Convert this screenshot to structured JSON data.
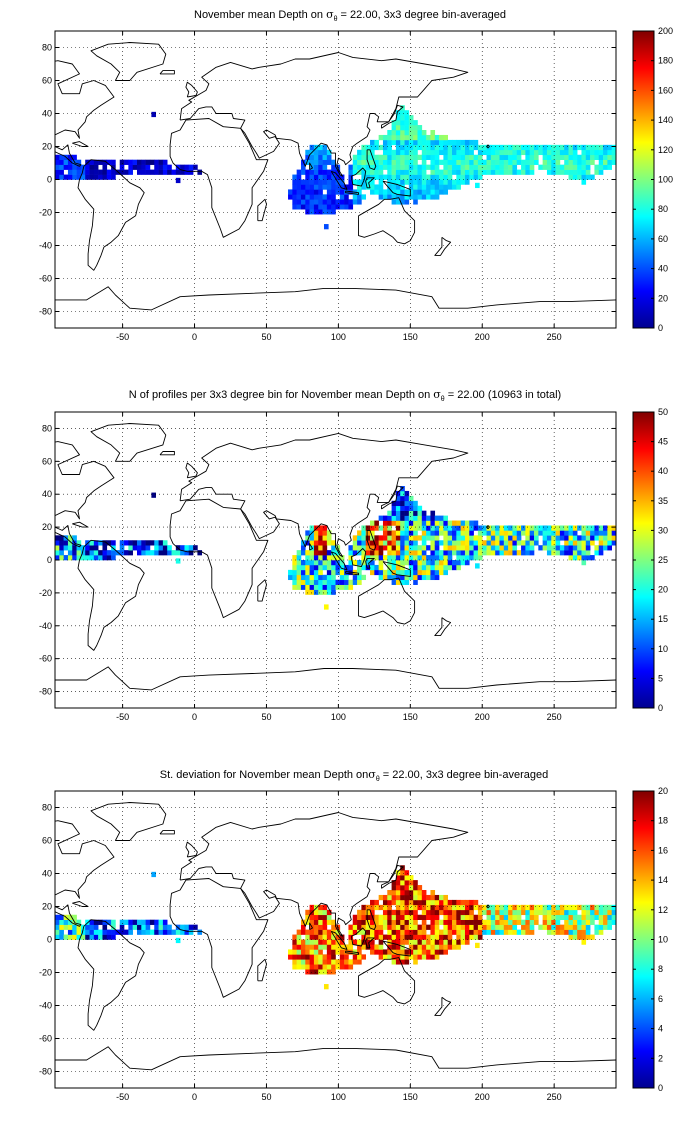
{
  "panels": [
    {
      "id": "mean-depth",
      "title": {
        "pre": "November mean Depth on ",
        "sym": "σ",
        "sub": "θ",
        "post": " = 22.00, 3x3 degree bin-averaged"
      },
      "colorbar": {
        "min": 0,
        "max": 200,
        "ticks": [
          "0",
          "20",
          "40",
          "60",
          "80",
          "100",
          "120",
          "140",
          "160",
          "180",
          "200"
        ]
      }
    },
    {
      "id": "profile-count",
      "title": {
        "pre": "N of profiles per 3x3 degree bin for November mean Depth on ",
        "sym": "σ",
        "sub": "θ",
        "post": " = 22.00 (10963 in total)"
      },
      "colorbar": {
        "min": 0,
        "max": 50,
        "ticks": [
          "0",
          "5",
          "10",
          "15",
          "20",
          "25",
          "30",
          "35",
          "40",
          "45",
          "50"
        ]
      }
    },
    {
      "id": "std-dev",
      "title": {
        "pre": "St. deviation for November mean Depth on",
        "sym": "σ",
        "sub": "θ",
        "post": " = 22.00, 3x3 degree bin-averaged"
      },
      "colorbar": {
        "min": 0,
        "max": 20,
        "ticks": [
          "0",
          "2",
          "4",
          "6",
          "8",
          "10",
          "12",
          "14",
          "16",
          "18",
          "20"
        ]
      }
    }
  ],
  "axes": {
    "x_ticks": [
      "-50",
      "0",
      "50",
      "100",
      "150",
      "200",
      "250"
    ],
    "x_values": [
      -50,
      0,
      50,
      100,
      150,
      200,
      250
    ],
    "xlim": [
      -97,
      293
    ],
    "y_ticks": [
      "80",
      "60",
      "40",
      "20",
      "0",
      "-20",
      "-40",
      "-60",
      "-80"
    ],
    "y_values": [
      80,
      60,
      40,
      20,
      0,
      -20,
      -40,
      -60,
      -80
    ],
    "ylim": [
      -90,
      90
    ],
    "grid": "dotted"
  },
  "colormap": "jet",
  "chart_data": [
    {
      "type": "heatmap",
      "title": "November mean Depth on σθ = 22.00, 3x3 degree bin-averaged",
      "variable": "mean depth",
      "bin_size_deg": 3,
      "zlim": [
        0,
        200
      ],
      "regions": [
        {
          "lon": [
            -97,
            -70
          ],
          "lat": [
            0,
            15
          ],
          "approx_value": 40
        },
        {
          "lon": [
            -70,
            5
          ],
          "lat": [
            0,
            12
          ],
          "approx_value": 20
        },
        {
          "lon": [
            60,
            120
          ],
          "lat": [
            -20,
            20
          ],
          "approx_value": 45
        },
        {
          "lon": [
            110,
            293
          ],
          "lat": [
            -15,
            40
          ],
          "approx_value": 70
        }
      ]
    },
    {
      "type": "heatmap",
      "title": "N of profiles per 3x3 degree bin for November mean Depth on σθ = 22.00 (10963 in total)",
      "variable": "profile count",
      "bin_size_deg": 3,
      "total": 10963,
      "zlim": [
        0,
        50
      ],
      "regions": [
        {
          "lon": [
            -97,
            -70
          ],
          "lat": [
            0,
            15
          ],
          "approx_value": 15
        },
        {
          "lon": [
            -70,
            5
          ],
          "lat": [
            0,
            12
          ],
          "approx_value": 8
        },
        {
          "lon": [
            60,
            120
          ],
          "lat": [
            -20,
            20
          ],
          "approx_value": 20
        },
        {
          "lon": [
            110,
            293
          ],
          "lat": [
            -15,
            40
          ],
          "approx_value": 20
        },
        {
          "lon": [
            83,
            92
          ],
          "lat": [
            5,
            20
          ],
          "approx_value": 45
        },
        {
          "lon": [
            118,
            140
          ],
          "lat": [
            5,
            22
          ],
          "approx_value": 40
        }
      ]
    },
    {
      "type": "heatmap",
      "title": "St. deviation for November mean Depth onσθ = 22.00, 3x3 degree bin-averaged",
      "variable": "standard deviation",
      "bin_size_deg": 3,
      "zlim": [
        0,
        20
      ],
      "regions": [
        {
          "lon": [
            -97,
            -70
          ],
          "lat": [
            0,
            15
          ],
          "approx_value": 8
        },
        {
          "lon": [
            -70,
            5
          ],
          "lat": [
            0,
            12
          ],
          "approx_value": 4
        },
        {
          "lon": [
            60,
            120
          ],
          "lat": [
            -20,
            20
          ],
          "approx_value": 16
        },
        {
          "lon": [
            110,
            293
          ],
          "lat": [
            -15,
            25
          ],
          "approx_value": 15
        },
        {
          "lon": [
            200,
            293
          ],
          "lat": [
            -5,
            20
          ],
          "approx_value": 10
        }
      ]
    }
  ]
}
